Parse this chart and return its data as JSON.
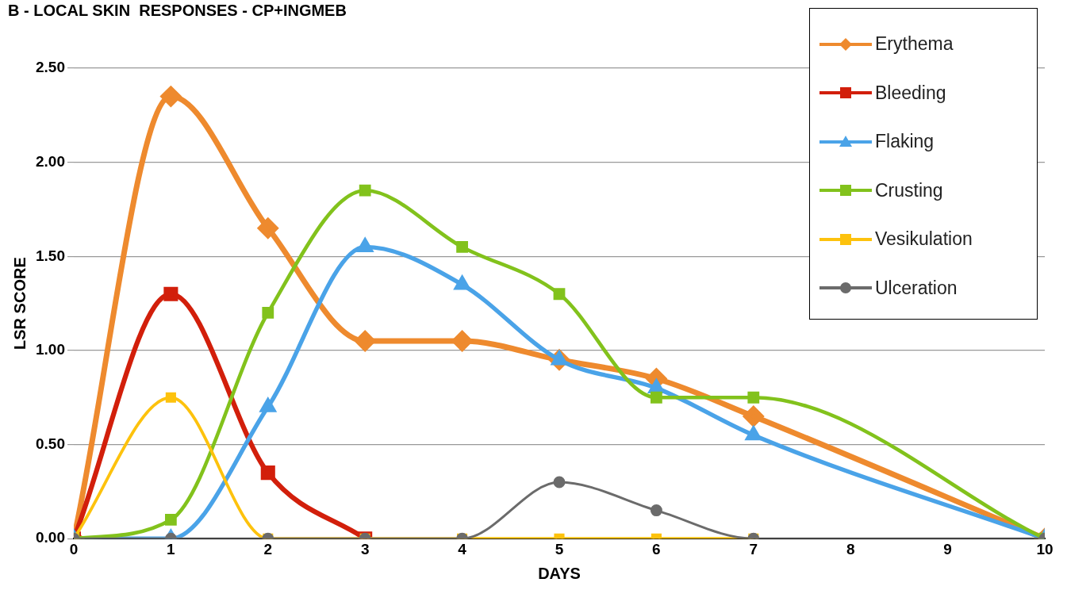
{
  "chart_data": {
    "type": "line",
    "title": "B - LOCAL SKIN  RESPONSES - CP+INGMEB",
    "xlabel": "DAYS",
    "ylabel": "LSR SCORE",
    "x": [
      0,
      1,
      2,
      3,
      4,
      5,
      6,
      7,
      10
    ],
    "xlim": [
      0,
      10
    ],
    "xticks": [
      0,
      1,
      2,
      3,
      4,
      5,
      6,
      7,
      8,
      9,
      10
    ],
    "ylim": [
      0,
      2.5
    ],
    "yticks": [
      {
        "value": 0,
        "label": "0.00"
      },
      {
        "value": 0.5,
        "label": "0.50"
      },
      {
        "value": 1,
        "label": "1.00"
      },
      {
        "value": 1.5,
        "label": "1.50"
      },
      {
        "value": 2,
        "label": "2.00"
      },
      {
        "value": 2.5,
        "label": "2.50"
      }
    ],
    "grid": "y",
    "legend": "top right",
    "line_style": "solid",
    "series": [
      {
        "name": "Erythema",
        "color": "#ee8a2e",
        "marker": "diamond",
        "values": [
          0,
          2.35,
          1.65,
          1.05,
          1.05,
          0.95,
          0.85,
          0.65,
          0
        ]
      },
      {
        "name": "Bleeding",
        "color": "#d21f0b",
        "marker": "square",
        "values": [
          0,
          1.3,
          0.35,
          0,
          null,
          null,
          null,
          null,
          null
        ]
      },
      {
        "name": "Flaking",
        "color": "#4aa3e8",
        "marker": "triangle",
        "values": [
          0,
          0,
          0.7,
          1.55,
          1.35,
          0.95,
          0.8,
          0.55,
          0
        ]
      },
      {
        "name": "Crusting",
        "color": "#82c21c",
        "marker": "square",
        "values": [
          0,
          0.1,
          1.2,
          1.85,
          1.55,
          1.3,
          0.75,
          0.75,
          0
        ]
      },
      {
        "name": "Vesikulation",
        "color": "#fdc20d",
        "marker": "square",
        "values": [
          0,
          0.75,
          0,
          0,
          0,
          0,
          0,
          0,
          null
        ]
      },
      {
        "name": "Ulceration",
        "color": "#6b6b6b",
        "marker": "circle",
        "values": [
          0,
          0,
          0,
          0,
          0,
          0.3,
          0.15,
          0,
          0
        ]
      }
    ]
  }
}
